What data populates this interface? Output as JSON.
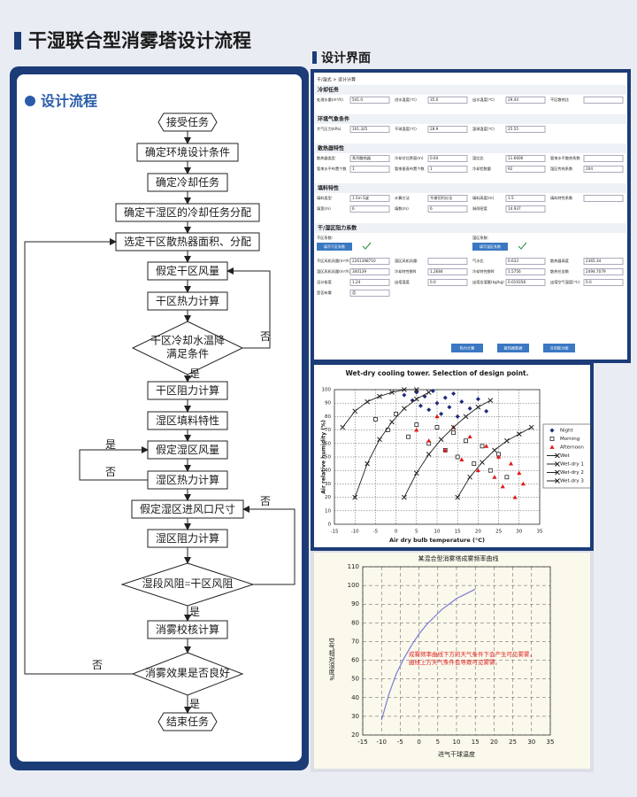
{
  "title": "干湿联合型消雾塔设计流程",
  "flow": {
    "heading": "设计流程",
    "nodes": [
      {
        "label": "接受任务",
        "shape": "terminal"
      },
      {
        "label": "确定环境设计条件"
      },
      {
        "label": "确定冷却任务"
      },
      {
        "label": "确定干湿区的冷却任务分配"
      },
      {
        "label": "选定干区散热器面积、分配"
      },
      {
        "label": "假定干区风量"
      },
      {
        "label": "干区热力计算"
      },
      {
        "label": [
          "干区冷却水温降",
          "满足条件"
        ],
        "shape": "diamond"
      },
      {
        "label": "干区阻力计算"
      },
      {
        "label": "湿区填料特性"
      },
      {
        "label": "假定湿区风量"
      },
      {
        "label": "湿区热力计算"
      },
      {
        "label": "假定湿区进风口尺寸"
      },
      {
        "label": "湿区阻力计算"
      },
      {
        "label": [
          "湿段风阻=干区风阻"
        ],
        "shape": "diamond"
      },
      {
        "label": "消雾校核计算"
      },
      {
        "label": [
          "消雾效果是否良好"
        ],
        "shape": "diamond"
      },
      {
        "label": "结束任务",
        "shape": "terminal"
      }
    ],
    "edge_labels": [
      "否",
      "是",
      "是",
      "否",
      "否",
      "是",
      "否",
      "是"
    ]
  },
  "ui": {
    "heading": "设计界面",
    "breadcrumb": "干/湿式 > 设计计算",
    "sections": [
      {
        "title": "冷却任务",
        "fields": [
          {
            "label": "处理水量(m³/h)",
            "value": "541.0"
          },
          {
            "label": "进水温度(℃)",
            "value": "35.0"
          },
          {
            "label": "出水温度(℃)",
            "value": "29.44"
          },
          {
            "label": "干区散热比"
          }
        ]
      },
      {
        "title": "环境气象条件",
        "fields": [
          {
            "label": "大气压力(kPa)",
            "value": "101.325"
          },
          {
            "label": "干球温度(℃)",
            "value": "28.9"
          },
          {
            "label": "湿球温度(℃)",
            "value": "25.55"
          }
        ]
      },
      {
        "title": "散热器特性",
        "fields": [
          {
            "label": "散热器类型",
            "value": "系列散热器"
          },
          {
            "label": "冷却对比界面(m)",
            "value": "0.64"
          },
          {
            "label": "湿比比",
            "value": "11.6606"
          },
          {
            "label": "管束水平散热系数"
          },
          {
            "label": "管束水平布置个数",
            "value": "1"
          },
          {
            "label": "管束垂直布置个数",
            "value": "1"
          },
          {
            "label": "冷却铝数量",
            "value": "92"
          },
          {
            "label": "湿区传热系数",
            "value": "204"
          }
        ]
      },
      {
        "title": "填料特性",
        "fields": [
          {
            "label": "填料类型",
            "value": "1.5m S波"
          },
          {
            "label": "计算方法",
            "value": "令谢切利分法"
          },
          {
            "label": "填料高度(m)",
            "value": "1.5"
          },
          {
            "label": "填料特性系数"
          },
          {
            "label": "填宽(m)",
            "value": "6"
          },
          {
            "label": "填数(m)",
            "value": "6"
          },
          {
            "label": "淋雨密度",
            "value": "14.937"
          }
        ]
      }
    ],
    "resistance": {
      "title": "干/湿区阻力系数",
      "items": [
        {
          "label": "干区系数:",
          "button": "填写干区系数"
        },
        {
          "label": "湿区系数:",
          "button": "填写湿区系数"
        }
      ]
    },
    "results": [
      {
        "label": "干区风机风量(m³/h)",
        "value": "2261398710"
      },
      {
        "label": "湿区风机风量:"
      },
      {
        "label": "气水比",
        "value": "0.633"
      },
      {
        "label": "散热器高度",
        "value": "2365.34"
      },
      {
        "label": "湿区风机风量(m³/h)",
        "value": "300139"
      },
      {
        "label": "冷却特性数N",
        "value": "1.2684"
      },
      {
        "label": "冷却特性数N'",
        "value": "1.5756"
      },
      {
        "label": "散热任务数",
        "value": "2494.7079"
      },
      {
        "label": "设计裕度",
        "value": "1.24"
      },
      {
        "label": "出塔湿度",
        "value": "0.0"
      },
      {
        "label": "出塔含湿量(kg/kg)",
        "value": "0.019358"
      },
      {
        "label": "出塔空气温度(℃)",
        "value": "0.0"
      },
      {
        "label": "是否有雾",
        "value": "否"
      }
    ],
    "buttons": [
      "热力计算",
      "散热器数据",
      "冷却能力图"
    ]
  },
  "chart_data": [
    {
      "type": "scatter",
      "title": "Wet-dry cooling tower. Selection of design point.",
      "xlabel": "Air dry bulb temperature (°C)",
      "ylabel": "Air relative humidity (%)",
      "xlim": [
        -15,
        35
      ],
      "ylim": [
        0,
        100
      ],
      "xticks": [
        -15,
        -10,
        -5,
        0,
        5,
        10,
        15,
        20,
        25,
        30,
        35
      ],
      "yticks": [
        0,
        10,
        20,
        30,
        40,
        50,
        60,
        70,
        80,
        90,
        100
      ],
      "grid": true,
      "series": [
        {
          "name": "Night",
          "color": "#1f2a7a",
          "marker": "diamond",
          "x": [
            2,
            4,
            5,
            6,
            7,
            8,
            9,
            10,
            11,
            12,
            13,
            14,
            15,
            16,
            18,
            20,
            22
          ],
          "values": [
            96,
            92,
            98,
            88,
            95,
            85,
            99,
            90,
            82,
            94,
            87,
            97,
            80,
            91,
            86,
            93,
            84
          ]
        },
        {
          "name": "Morning",
          "color": "#222222",
          "marker": "square",
          "x": [
            -5,
            -2,
            0,
            3,
            5,
            8,
            10,
            12,
            14,
            15,
            17,
            19,
            21,
            23,
            25,
            27
          ],
          "values": [
            78,
            70,
            82,
            65,
            74,
            60,
            72,
            55,
            68,
            50,
            62,
            45,
            58,
            40,
            52,
            35
          ]
        },
        {
          "name": "Afternoon",
          "color": "#e01818",
          "marker": "triangle",
          "x": [
            5,
            8,
            10,
            12,
            14,
            16,
            18,
            20,
            22,
            24,
            25,
            26,
            28,
            29,
            30,
            31
          ],
          "values": [
            70,
            62,
            80,
            55,
            72,
            48,
            65,
            40,
            58,
            35,
            50,
            28,
            45,
            20,
            38,
            30
          ]
        },
        {
          "name": "Wet",
          "color": "#222222",
          "marker": "line",
          "x": [
            -13,
            -10,
            -7,
            -4,
            -1,
            2,
            5
          ],
          "values": [
            72,
            84,
            91,
            95,
            98,
            100,
            100
          ]
        },
        {
          "name": "Wet-dry 1",
          "color": "#222222",
          "marker": "line",
          "x": [
            -10,
            -7,
            -4,
            -1,
            2,
            5,
            8
          ],
          "values": [
            20,
            45,
            63,
            76,
            86,
            93,
            98
          ]
        },
        {
          "name": "Wet-dry 2",
          "color": "#222222",
          "marker": "line",
          "x": [
            2,
            5,
            8,
            11,
            14,
            17,
            20,
            23
          ],
          "values": [
            20,
            38,
            52,
            63,
            72,
            80,
            87,
            92
          ]
        },
        {
          "name": "Wet-dry 3",
          "color": "#222222",
          "marker": "line",
          "x": [
            15,
            18,
            21,
            24,
            27,
            30,
            33
          ],
          "values": [
            20,
            35,
            46,
            55,
            62,
            67,
            72
          ]
        }
      ]
    },
    {
      "type": "line",
      "title": "某混合型消雾塔成雾频率曲线",
      "xlabel": "进气干球温度",
      "ylabel": "空气相对湿度%",
      "xlim": [
        -15,
        35
      ],
      "ylim": [
        20,
        110
      ],
      "xticks": [
        -15,
        -10,
        -5,
        0,
        5,
        10,
        15,
        20,
        25,
        30,
        35
      ],
      "yticks": [
        20,
        30,
        40,
        50,
        60,
        70,
        80,
        90,
        100,
        110
      ],
      "grid": true,
      "annotations": [
        "成雾频率曲线下方的天气条件下会产生可见雾雾，",
        "曲线上方天气条件会导致可见雾雾。"
      ],
      "series": [
        {
          "name": "成雾频率曲线",
          "color": "#7b7bd6",
          "x": [
            -10,
            -8,
            -6,
            -4,
            -2,
            0,
            2,
            4,
            6,
            8,
            10,
            12,
            15
          ],
          "values": [
            28,
            42,
            53,
            61,
            68,
            74,
            79,
            83,
            87,
            90,
            93,
            95,
            98
          ]
        }
      ]
    }
  ]
}
